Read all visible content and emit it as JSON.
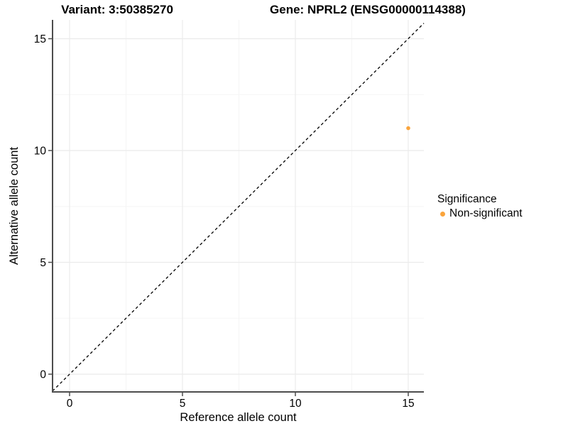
{
  "chart_data": {
    "type": "scatter",
    "titles": {
      "left": "Variant: 3:50385270",
      "right": "Gene: NPRL2 (ENSG00000114388)"
    },
    "xlabel": "Reference allele count",
    "ylabel": "Alternative allele count",
    "xlim": [
      -0.76,
      15.7
    ],
    "ylim": [
      -0.79,
      15.84
    ],
    "xticks": [
      0,
      5,
      10,
      15
    ],
    "yticks": [
      0,
      5,
      10,
      15
    ],
    "minor_xticks": [
      2.5,
      7.5,
      12.5
    ],
    "minor_yticks": [
      2.5,
      7.5,
      12.5
    ],
    "grid": "major and minor gridlines on, white panel background, no panel border",
    "reference_line": {
      "slope": 1,
      "intercept": 0,
      "style": "dashed",
      "color": "#000000"
    },
    "series": [
      {
        "name": "Non-significant",
        "color": "#FAA43C",
        "points": [
          {
            "x": 15,
            "y": 11
          }
        ]
      }
    ],
    "legend": {
      "title": "Significance",
      "position": "right",
      "entries": [
        {
          "label": "Non-significant",
          "color": "#FAA43C"
        }
      ]
    },
    "colors": {
      "grid_major": "#EBEBEB",
      "grid_minor": "#F5F5F5",
      "axis_line": "#4D4D4D",
      "tick_mark": "#4D4D4D",
      "text": "#000000"
    }
  }
}
